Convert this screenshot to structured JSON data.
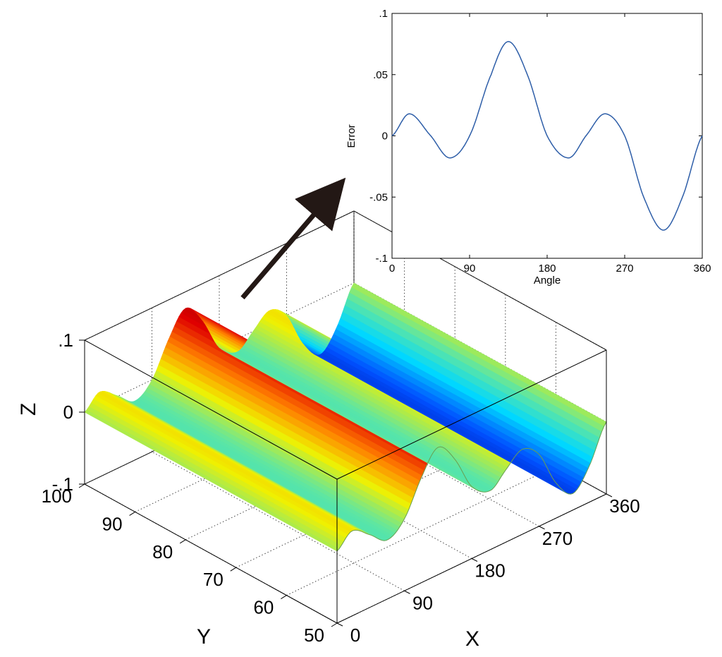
{
  "chart_data": [
    {
      "type": "surface",
      "xlabel": "X",
      "ylabel": "Y",
      "zlabel": "Z",
      "xlim": [
        0,
        360
      ],
      "ylim": [
        50,
        100
      ],
      "zlim": [
        -0.1,
        0.1
      ],
      "xticks": [
        0,
        90,
        180,
        270,
        360
      ],
      "yticks": [
        50,
        60,
        70,
        80,
        90,
        100
      ],
      "zticks": [
        -0.1,
        0,
        0.1
      ],
      "colormap": [
        "#00008f",
        "#0050ff",
        "#00d8ff",
        "#60e6a0",
        "#f0f000",
        "#ff8000",
        "#e00000",
        "#800000"
      ],
      "x": [
        0,
        20,
        45,
        67,
        90,
        115,
        135,
        157,
        180,
        205,
        225,
        247,
        270,
        292,
        315,
        337,
        360
      ],
      "z": [
        0.0,
        0.018,
        0.0,
        -0.018,
        0.0,
        0.05,
        0.077,
        0.05,
        0.0,
        -0.018,
        0.0,
        0.018,
        0.0,
        -0.05,
        -0.077,
        -0.05,
        0.0
      ]
    },
    {
      "type": "line",
      "xlabel": "Angle",
      "ylabel": "Error",
      "xlim": [
        0,
        360
      ],
      "ylim": [
        -0.1,
        0.1
      ],
      "xticks": [
        0,
        90,
        180,
        270,
        360
      ],
      "yticks": [
        -0.1,
        -0.05,
        0,
        0.05,
        0.1
      ],
      "line_color": "#2e5ea8",
      "x": [
        0,
        20,
        45,
        67,
        90,
        115,
        135,
        157,
        180,
        205,
        225,
        247,
        270,
        292,
        315,
        337,
        360
      ],
      "y": [
        0.0,
        0.018,
        0.0,
        -0.018,
        0.0,
        0.05,
        0.077,
        0.05,
        0.0,
        -0.018,
        0.0,
        0.018,
        0.0,
        -0.05,
        -0.077,
        -0.05,
        0.0
      ]
    }
  ]
}
